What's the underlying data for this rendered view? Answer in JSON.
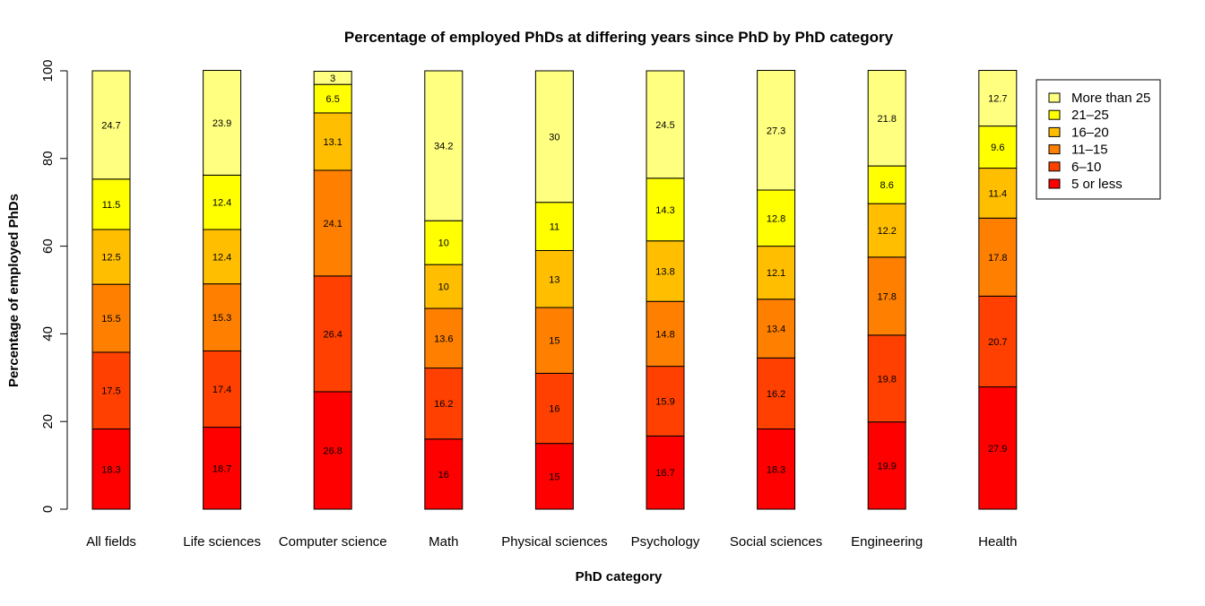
{
  "chart_data": {
    "type": "bar",
    "stacked": true,
    "title": "Percentage of employed PhDs at differing years since PhD by PhD category",
    "xlabel": "PhD category",
    "ylabel": "Percentage of employed PhDs",
    "ylim": [
      0,
      100
    ],
    "yticks": [
      "0",
      "20",
      "40",
      "60",
      "80",
      "100"
    ],
    "grid": false,
    "legend_position": "right",
    "categories": [
      "All fields",
      "Life sciences",
      "Computer science",
      "Math",
      "Physical sciences",
      "Psychology",
      "Social sciences",
      "Engineering",
      "Health"
    ],
    "series": [
      {
        "name": "5 or less",
        "color": "#FF0000",
        "values": [
          18.3,
          18.7,
          26.8,
          16,
          15,
          16.7,
          18.3,
          19.9,
          27.9
        ]
      },
      {
        "name": "6–10",
        "color": "#FF4000",
        "values": [
          17.5,
          17.4,
          26.4,
          16.2,
          16,
          15.9,
          16.2,
          19.8,
          20.7
        ]
      },
      {
        "name": "11–15",
        "color": "#FF8000",
        "values": [
          15.5,
          15.3,
          24.1,
          13.6,
          15,
          14.8,
          13.4,
          17.8,
          17.8
        ]
      },
      {
        "name": "16–20",
        "color": "#FFBF00",
        "values": [
          12.5,
          12.4,
          13.1,
          10,
          13,
          13.8,
          12.1,
          12.2,
          11.4
        ]
      },
      {
        "name": "21–25",
        "color": "#FFFF00",
        "values": [
          11.5,
          12.4,
          6.5,
          10,
          11,
          14.3,
          12.8,
          8.6,
          9.6
        ]
      },
      {
        "name": "More than 25",
        "color": "#FFFF80",
        "values": [
          24.7,
          23.9,
          3,
          34.2,
          30,
          24.5,
          27.3,
          21.8,
          12.7
        ]
      }
    ]
  }
}
